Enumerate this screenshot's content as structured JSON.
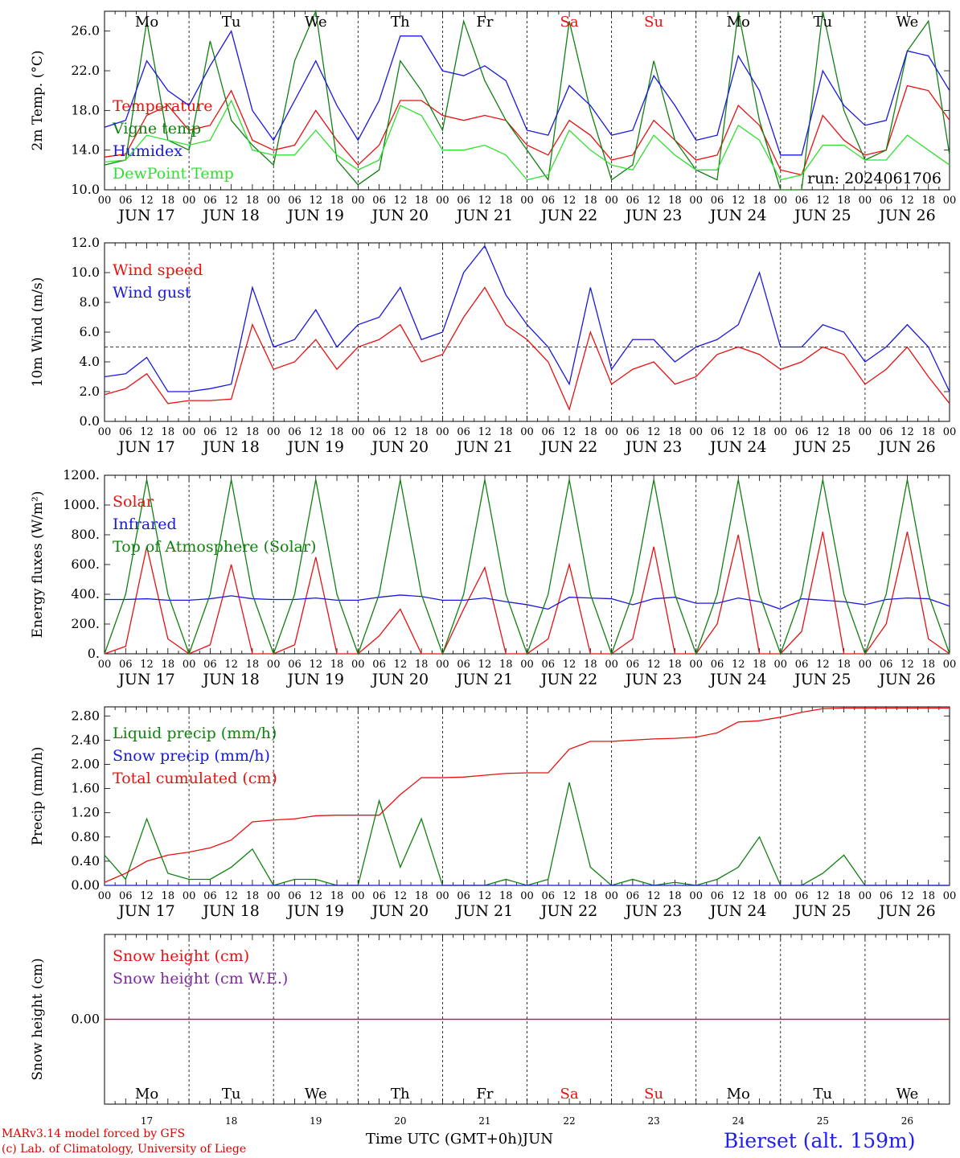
{
  "run_label": "run: 2024061706",
  "day_abbrevs": [
    "Mo",
    "Tu",
    "We",
    "Th",
    "Fr",
    "Sa",
    "Su",
    "Mo",
    "Tu",
    "We"
  ],
  "weekend_flags": [
    false,
    false,
    false,
    false,
    false,
    true,
    true,
    false,
    false,
    false
  ],
  "date_labels": [
    "JUN 17",
    "JUN 18",
    "JUN 19",
    "JUN 20",
    "JUN 21",
    "JUN 22",
    "JUN 23",
    "JUN 24",
    "JUN 25",
    "JUN 26"
  ],
  "hour_ticks": [
    "00",
    "06",
    "12",
    "18"
  ],
  "day_numbers": [
    "17",
    "18",
    "19",
    "20",
    "21",
    "22",
    "23",
    "24",
    "25",
    "26"
  ],
  "footer": {
    "credit1": "MARv3.14 model forced by GFS",
    "credit2": "(c) Lab. of Climatology, University of Liege",
    "xtitle": "Time UTC (GMT+0h)JUN",
    "station": "Bierset (alt. 159m)"
  },
  "colors": {
    "red": "#e81010",
    "green": "#108010",
    "blue": "#1818e0",
    "lime": "#30e030",
    "purple": "#7a2a9a"
  },
  "chart_data": [
    {
      "type": "line",
      "ylabel": "2m Temp. (°C)",
      "ylim": [
        10,
        28
      ],
      "yticks": [
        "10.0",
        "14.0",
        "18.0",
        "22.0",
        "26.0"
      ],
      "x_hours": [
        0,
        6,
        12,
        18,
        24,
        30,
        36,
        42,
        48,
        54,
        60,
        66,
        72,
        78,
        84,
        90,
        96,
        102,
        108,
        114,
        120,
        126,
        132,
        138,
        144,
        150,
        156,
        162,
        168,
        174,
        180,
        186,
        192,
        198,
        204,
        210,
        216,
        222,
        228,
        234,
        240
      ],
      "series": [
        {
          "name": "Temperature",
          "color": "red",
          "values": [
            13.3,
            13.6,
            17.5,
            18.5,
            16.0,
            16.5,
            20.0,
            15.0,
            14.0,
            14.5,
            18.0,
            15.0,
            12.5,
            14.5,
            19.0,
            19.0,
            17.5,
            17.0,
            17.5,
            17.0,
            14.5,
            13.5,
            17.0,
            15.5,
            13.0,
            13.5,
            17.0,
            15.0,
            13.0,
            13.5,
            18.5,
            16.5,
            12.0,
            11.5,
            17.5,
            15.0,
            13.5,
            14.0,
            20.5,
            20.0,
            17.0
          ]
        },
        {
          "name": "Vigne temp",
          "color": "green",
          "values": [
            12.5,
            13.0,
            27.0,
            15.0,
            14.0,
            25.0,
            17.0,
            14.5,
            12.5,
            23.0,
            28.0,
            13.0,
            10.5,
            12.0,
            23.0,
            20.0,
            16.0,
            27.0,
            21.0,
            17.0,
            14.0,
            11.0,
            27.0,
            18.0,
            11.0,
            12.5,
            23.0,
            15.0,
            12.0,
            11.0,
            28.0,
            17.0,
            10.0,
            10.0,
            28.0,
            18.0,
            13.0,
            14.0,
            24.0,
            27.0,
            13.5
          ]
        },
        {
          "name": "Humidex",
          "color": "blue",
          "values": [
            16.3,
            17.0,
            23.0,
            20.0,
            18.5,
            22.5,
            26.0,
            18.0,
            15.0,
            19.0,
            23.0,
            18.5,
            15.0,
            19.0,
            25.5,
            25.5,
            22.0,
            21.5,
            22.5,
            21.0,
            16.0,
            15.5,
            20.5,
            18.5,
            15.5,
            16.0,
            21.5,
            18.5,
            15.0,
            15.5,
            23.5,
            20.0,
            13.5,
            13.5,
            22.0,
            18.5,
            16.5,
            17.0,
            24.0,
            23.5,
            20.0
          ]
        },
        {
          "name": "DewPoint Temp",
          "color": "lime",
          "values": [
            12.8,
            13.0,
            15.5,
            15.0,
            14.5,
            15.0,
            19.0,
            14.0,
            13.5,
            13.5,
            16.0,
            13.5,
            12.0,
            13.0,
            18.5,
            17.5,
            14.0,
            14.0,
            14.5,
            13.5,
            11.0,
            11.5,
            16.0,
            14.0,
            12.5,
            12.0,
            15.5,
            13.5,
            12.0,
            12.0,
            16.5,
            15.0,
            11.0,
            11.5,
            14.5,
            14.5,
            13.0,
            13.0,
            15.5,
            14.0,
            12.5
          ]
        }
      ]
    },
    {
      "type": "line",
      "ylabel": "10m Wind (m/s)",
      "ylim": [
        0,
        12
      ],
      "yticks": [
        "0.0",
        "2.0",
        "4.0",
        "6.0",
        "8.0",
        "10.0",
        "12.0"
      ],
      "reference_line": 5,
      "x_hours": [
        0,
        6,
        12,
        18,
        24,
        30,
        36,
        42,
        48,
        54,
        60,
        66,
        72,
        78,
        84,
        90,
        96,
        102,
        108,
        114,
        120,
        126,
        132,
        138,
        144,
        150,
        156,
        162,
        168,
        174,
        180,
        186,
        192,
        198,
        204,
        210,
        216,
        222,
        228,
        234,
        240
      ],
      "series": [
        {
          "name": "Wind speed",
          "color": "red",
          "values": [
            1.8,
            2.2,
            3.2,
            1.2,
            1.4,
            1.4,
            1.5,
            6.5,
            3.5,
            4.0,
            5.5,
            3.5,
            5.0,
            5.5,
            6.5,
            4.0,
            4.5,
            7.0,
            9.0,
            6.5,
            5.5,
            4.0,
            0.8,
            6.0,
            2.5,
            3.5,
            4.0,
            2.5,
            3.0,
            4.5,
            5.0,
            4.5,
            3.5,
            4.0,
            5.0,
            4.5,
            2.5,
            3.5,
            5.0,
            3.0,
            1.2
          ]
        },
        {
          "name": "Wind gust",
          "color": "blue",
          "values": [
            3.0,
            3.2,
            4.3,
            2.0,
            2.0,
            2.2,
            2.5,
            9.0,
            5.0,
            5.5,
            7.5,
            5.0,
            6.5,
            7.0,
            9.0,
            5.5,
            6.0,
            10.0,
            11.8,
            8.5,
            6.5,
            5.0,
            2.5,
            9.0,
            3.5,
            5.5,
            5.5,
            4.0,
            5.0,
            5.5,
            6.5,
            10.0,
            5.0,
            5.0,
            6.5,
            6.0,
            4.0,
            5.0,
            6.5,
            5.0,
            2.0
          ]
        }
      ]
    },
    {
      "type": "line",
      "ylabel": "Energy fluxes (W/m²)",
      "ylim": [
        0,
        1200
      ],
      "yticks": [
        "0.",
        "200.",
        "400.",
        "600.",
        "800.",
        "1000.",
        "1200."
      ],
      "x_hours": [
        0,
        6,
        12,
        18,
        24,
        30,
        36,
        42,
        48,
        54,
        60,
        66,
        72,
        78,
        84,
        90,
        96,
        102,
        108,
        114,
        120,
        126,
        132,
        138,
        144,
        150,
        156,
        162,
        168,
        174,
        180,
        186,
        192,
        198,
        204,
        210,
        216,
        222,
        228,
        234,
        240
      ],
      "series": [
        {
          "name": "Solar",
          "color": "red",
          "values": [
            0,
            50,
            720,
            100,
            0,
            60,
            600,
            0,
            0,
            60,
            650,
            0,
            0,
            120,
            300,
            0,
            0,
            300,
            580,
            0,
            0,
            100,
            600,
            0,
            0,
            100,
            720,
            0,
            0,
            200,
            800,
            0,
            0,
            150,
            820,
            0,
            0,
            200,
            820,
            100,
            0
          ]
        },
        {
          "name": "Infrared",
          "color": "blue",
          "values": [
            365,
            365,
            370,
            360,
            360,
            370,
            390,
            370,
            365,
            365,
            375,
            360,
            360,
            380,
            395,
            385,
            360,
            360,
            375,
            350,
            330,
            300,
            380,
            375,
            370,
            330,
            370,
            380,
            340,
            340,
            375,
            350,
            300,
            370,
            360,
            350,
            330,
            365,
            375,
            370,
            320
          ]
        },
        {
          "name": "Top of Atmosphere (Solar)",
          "color": "green",
          "values": [
            0,
            400,
            1170,
            400,
            0,
            400,
            1170,
            400,
            0,
            400,
            1170,
            400,
            0,
            400,
            1170,
            400,
            0,
            400,
            1170,
            400,
            0,
            400,
            1170,
            400,
            0,
            400,
            1170,
            400,
            0,
            400,
            1170,
            400,
            0,
            400,
            1170,
            400,
            0,
            400,
            1170,
            400,
            0
          ]
        }
      ]
    },
    {
      "type": "line",
      "ylabel": "Precip (mm/h)",
      "ylim": [
        0,
        2.95
      ],
      "yticks": [
        "0.00",
        "0.40",
        "0.80",
        "1.20",
        "1.60",
        "2.00",
        "2.40",
        "2.80"
      ],
      "x_hours": [
        0,
        6,
        12,
        18,
        24,
        30,
        36,
        42,
        48,
        54,
        60,
        66,
        72,
        78,
        84,
        90,
        96,
        102,
        108,
        114,
        120,
        126,
        132,
        138,
        144,
        150,
        156,
        162,
        168,
        174,
        180,
        186,
        192,
        198,
        204,
        210,
        216,
        222,
        228,
        234,
        240
      ],
      "series": [
        {
          "name": "Liquid precip (mm/h)",
          "color": "green",
          "values": [
            0.5,
            0.1,
            1.1,
            0.2,
            0.1,
            0.1,
            0.3,
            0.6,
            0.0,
            0.1,
            0.1,
            0.0,
            0.0,
            1.4,
            0.3,
            1.1,
            0.0,
            0.0,
            0.0,
            0.1,
            0.0,
            0.1,
            1.7,
            0.3,
            0.0,
            0.1,
            0.0,
            0.05,
            0.0,
            0.1,
            0.3,
            0.8,
            0.0,
            0.0,
            0.2,
            0.5,
            0.0,
            0.0,
            0.0,
            0.0,
            0.0
          ]
        },
        {
          "name": "Snow precip (mm/h)",
          "color": "blue",
          "values": [
            0,
            0,
            0,
            0,
            0,
            0,
            0,
            0,
            0,
            0,
            0,
            0,
            0,
            0,
            0,
            0,
            0,
            0,
            0,
            0,
            0,
            0,
            0,
            0,
            0,
            0,
            0,
            0,
            0,
            0,
            0,
            0,
            0,
            0,
            0,
            0,
            0,
            0,
            0,
            0,
            0
          ]
        },
        {
          "name": "Total cumulated (cm)",
          "color": "red",
          "values": [
            0.05,
            0.2,
            0.4,
            0.5,
            0.55,
            0.62,
            0.75,
            1.05,
            1.08,
            1.1,
            1.15,
            1.16,
            1.16,
            1.16,
            1.5,
            1.78,
            1.78,
            1.79,
            1.82,
            1.85,
            1.86,
            1.86,
            2.25,
            2.38,
            2.38,
            2.4,
            2.42,
            2.43,
            2.45,
            2.52,
            2.7,
            2.72,
            2.78,
            2.86,
            2.92,
            2.93,
            2.93,
            2.93,
            2.93,
            2.93,
            2.93
          ]
        }
      ]
    },
    {
      "type": "line",
      "ylabel": "Snow height (cm)",
      "ylim": [
        -1,
        1
      ],
      "yticks": [
        "0.00"
      ],
      "x_hours": [
        0,
        240
      ],
      "series": [
        {
          "name": "Snow height (cm)",
          "color": "red",
          "values": [
            0,
            0
          ]
        },
        {
          "name": "Snow height (cm W.E.)",
          "color": "purple",
          "values": [
            0,
            0
          ]
        }
      ]
    }
  ]
}
